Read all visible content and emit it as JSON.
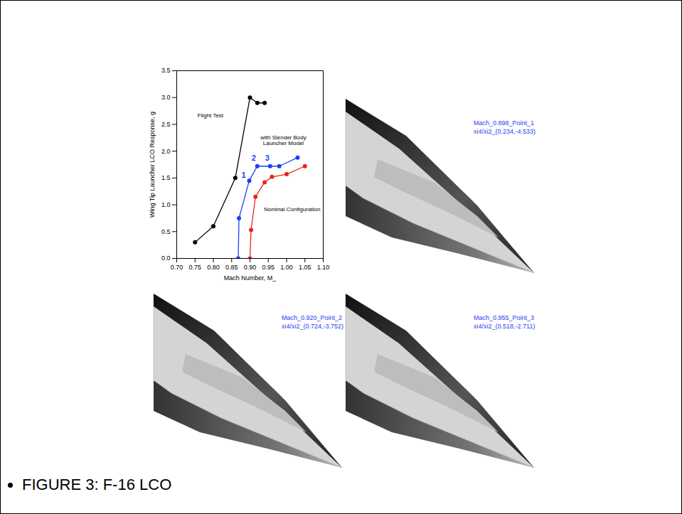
{
  "chart_data": {
    "type": "line",
    "x_label": "Mach Number, M_",
    "y_label": "Wing Tip Launcher LCO Response, g",
    "xlim": [
      0.7,
      1.1
    ],
    "xticks": [
      {
        "value": 0.7,
        "label": "0.70"
      },
      0.75,
      {
        "value": 0.8,
        "label": "0.80"
      },
      0.85,
      {
        "value": 0.9,
        "label": "0.90"
      },
      0.95,
      {
        "value": 1.0,
        "label": "1.00"
      },
      1.05,
      {
        "value": 1.1,
        "label": "1.10"
      }
    ],
    "ylim": [
      0.0,
      3.5
    ],
    "yticks": [
      {
        "value": 0.0,
        "label": "0.0"
      },
      0.5,
      {
        "value": 1.0,
        "label": "1.0"
      },
      1.5,
      {
        "value": 2.0,
        "label": "2.0"
      },
      2.5,
      {
        "value": 3.0,
        "label": "3.0"
      },
      3.5
    ],
    "grid": false,
    "series": [
      {
        "name": "Flight Test",
        "color": "#000000",
        "marker": "circle",
        "x": [
          0.75,
          0.8,
          0.86,
          0.9,
          0.92,
          0.94
        ],
        "values": [
          0.3,
          0.6,
          1.5,
          3.0,
          2.9,
          2.9
        ]
      },
      {
        "name": "with Slender Body Launcher Model",
        "color": "#1f3df0",
        "marker": "circle",
        "x": [
          0.868,
          0.87,
          0.898,
          0.92,
          0.955,
          0.98,
          1.03
        ],
        "values": [
          0.0,
          0.75,
          1.45,
          1.72,
          1.72,
          1.72,
          1.88
        ]
      },
      {
        "name": "Nominal Configuration",
        "color": "#e8231c",
        "marker": "circle",
        "x": [
          0.9,
          0.903,
          0.915,
          0.94,
          0.96,
          1.0,
          1.05
        ],
        "values": [
          0.0,
          0.53,
          1.15,
          1.42,
          1.52,
          1.57,
          1.72
        ]
      }
    ],
    "annotations": [
      {
        "text": "1",
        "x": 0.898,
        "y": 1.45
      },
      {
        "text": "2",
        "x": 0.92,
        "y": 1.72
      },
      {
        "text": "3",
        "x": 0.955,
        "y": 1.72
      }
    ]
  },
  "panels": [
    {
      "title": "Mach_0.898_Point_1",
      "subtitle": "xi4/xi2_(0.234,-4.533)"
    },
    {
      "title": "Mach_0.920_Point_2",
      "subtitle": "xi4/xi2_(0.724,-3.752)"
    },
    {
      "title": "Mach_0.955_Point_3",
      "subtitle": "xi4/xi2_(0.518,-2.711)"
    }
  ],
  "caption": "FIGURE 3: F-16 LCO"
}
